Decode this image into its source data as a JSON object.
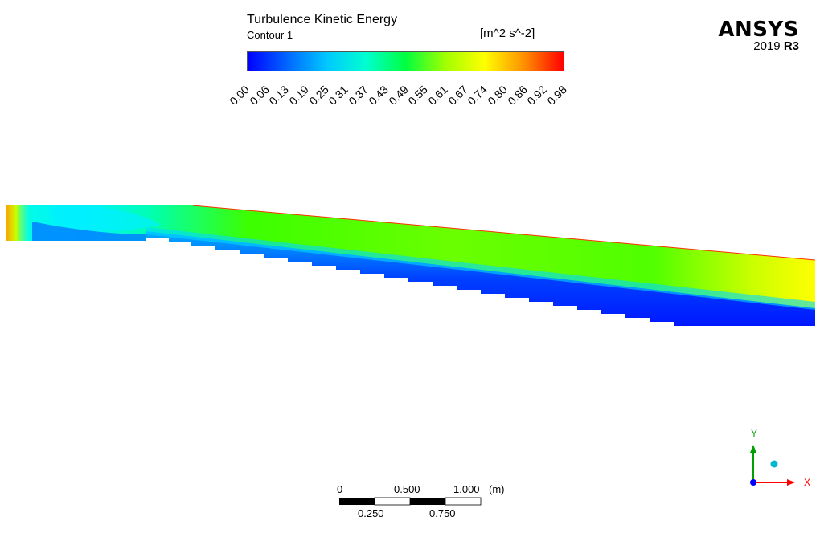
{
  "legend": {
    "title": "Turbulence Kinetic Energy",
    "subtitle": "Contour 1",
    "unit": "[m^2 s^-2]",
    "ticks": [
      "0.00",
      "0.06",
      "0.13",
      "0.19",
      "0.25",
      "0.31",
      "0.37",
      "0.43",
      "0.49",
      "0.55",
      "0.61",
      "0.67",
      "0.74",
      "0.80",
      "0.86",
      "0.92",
      "0.98"
    ],
    "colors": [
      "#0000ff",
      "#0066ff",
      "#00c8ff",
      "#00ffd0",
      "#00ff40",
      "#a0ff00",
      "#ffff00",
      "#ff9000",
      "#ff0000"
    ]
  },
  "brand": {
    "name": "ANSYS",
    "version": "2019",
    "release": "R3"
  },
  "scale_bar": {
    "top_labels": [
      "0",
      "0.500",
      "1.000"
    ],
    "bottom_labels": [
      "0.250",
      "0.750"
    ],
    "unit": "(m)"
  },
  "axes": {
    "x_label": "X",
    "y_label": "Y",
    "x_color": "#ff0000",
    "y_color": "#00a000",
    "z_color": "#0000ff",
    "sphere_color": "#00b7d0"
  }
}
